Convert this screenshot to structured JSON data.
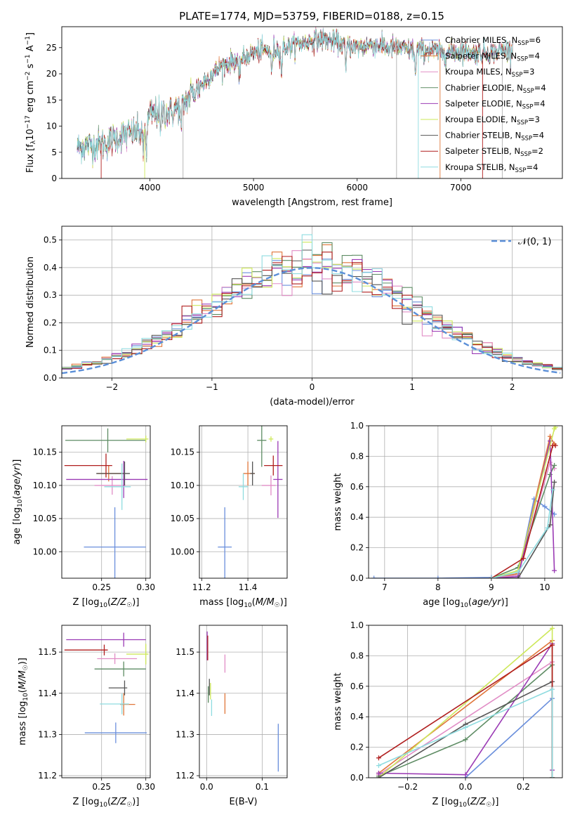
{
  "figure": {
    "title": "PLATE=1774, MJD=53759, FIBERID=0188, z=0.15"
  },
  "series": [
    {
      "name": "Chabrier MILES, N_SSP=6",
      "label": "Chabrier MILES, N",
      "ssp": "6",
      "color": "#6a8fdc"
    },
    {
      "name": "Salpeter MILES, N_SSP=4",
      "label": "Salpeter MILES, N",
      "ssp": "4",
      "color": "#e0763a"
    },
    {
      "name": "Kroupa MILES, N_SSP=3",
      "label": "Kroupa MILES, N",
      "ssp": "3",
      "color": "#e18dc6"
    },
    {
      "name": "Chabrier ELODIE, N_SSP=4",
      "label": "Chabrier ELODIE, N",
      "ssp": "4",
      "color": "#5e8c64"
    },
    {
      "name": "Salpeter ELODIE, N_SSP=4",
      "label": "Salpeter ELODIE, N",
      "ssp": "4",
      "color": "#9b3bb5"
    },
    {
      "name": "Kroupa ELODIE, N_SSP=3",
      "label": "Kroupa ELODIE, N",
      "ssp": "3",
      "color": "#cde85a"
    },
    {
      "name": "Chabrier STELIB, N_SSP=4",
      "label": "Chabrier STELIB, N",
      "ssp": "4",
      "color": "#555555"
    },
    {
      "name": "Salpeter STELIB, N_SSP=2",
      "label": "Salpeter STELIB, N",
      "ssp": "2",
      "color": "#b01e1e"
    },
    {
      "name": "Kroupa STELIB, N_SSP=4",
      "label": "Kroupa STELIB, N",
      "ssp": "4",
      "color": "#8fdce0"
    }
  ],
  "chart_data": [
    {
      "id": "spectrum",
      "type": "line",
      "xlabel": "wavelength [Angstrom, rest frame]",
      "ylabel": "Flux [f_λ 10^-17 erg cm^-2 s^-1 A^-1]",
      "xlim": [
        3150,
        7980
      ],
      "ylim": [
        0,
        29
      ],
      "xticks": [
        4000,
        5000,
        6000,
        7000
      ],
      "yticks": [
        0,
        5,
        10,
        15,
        20,
        25
      ],
      "grid": false,
      "legend_position": "top-right",
      "continuum": {
        "x": [
          3300,
          3400,
          3500,
          3600,
          3700,
          3800,
          3900,
          3950,
          4000,
          4100,
          4200,
          4300,
          4400,
          4500,
          4600,
          4700,
          4800,
          4900,
          5000,
          5100,
          5200,
          5300,
          5400,
          5500,
          5600,
          5700,
          5800,
          5900,
          6000,
          6100,
          6200,
          6300,
          6400,
          6500,
          6600,
          6700,
          6800,
          6900,
          7000,
          7100,
          7200,
          7300,
          7400,
          7500
        ],
        "y": [
          6.0,
          6.2,
          6.5,
          7.0,
          8.0,
          8.5,
          9.0,
          9.5,
          12.0,
          13.0,
          12.5,
          14.0,
          16.0,
          18.0,
          20.0,
          21.5,
          22.5,
          23.0,
          24.0,
          24.5,
          24.5,
          25.0,
          25.5,
          26.0,
          26.5,
          26.5,
          26.0,
          25.5,
          25.0,
          25.5,
          25.5,
          25.0,
          25.0,
          24.5,
          24.5,
          24.5,
          24.0,
          24.0,
          24.5,
          24.0,
          24.0,
          24.0,
          24.5,
          24.5
        ]
      },
      "absorption_lines": [
        3934,
        3968,
        4102,
        4300,
        4861,
        5175,
        5270,
        5890,
        6563
      ],
      "spike_lines": [
        3530,
        3950,
        4320,
        6380,
        6590,
        6800,
        7210,
        7400
      ]
    },
    {
      "id": "residual-histogram",
      "type": "histogram",
      "xlabel": "(data-model)/error",
      "ylabel": "Normed distribution",
      "xlim": [
        -2.5,
        2.5
      ],
      "ylim": [
        0,
        0.55
      ],
      "xticks": [
        -2,
        -1,
        0,
        1,
        2
      ],
      "yticks": [
        0.0,
        0.1,
        0.2,
        0.3,
        0.4,
        0.5
      ],
      "grid": true,
      "bin_width": 0.1,
      "reference_curve": {
        "label": "𝒩(0, 1)",
        "mean": 0,
        "sigma": 1,
        "style": "dashed"
      },
      "legend_position": "top-right"
    },
    {
      "id": "age-vs-z",
      "type": "errorbar",
      "xlabel": "Z [log₁₀(Z/Z☉)]",
      "ylabel": "age  [log₁₀(age/yr)]",
      "xlim": [
        0.205,
        0.305
      ],
      "ylim": [
        9.96,
        10.19
      ],
      "xticks": [
        0.25,
        0.3
      ],
      "xtick_labels": [
        "0.25",
        "0.30"
      ],
      "yticks": [
        10.0,
        10.05,
        10.1,
        10.15
      ],
      "grid": true,
      "points": [
        {
          "x": 0.265,
          "y": 10.007,
          "xerr": [
            0.035,
            0.035
          ],
          "yerr": [
            0.06,
            0.06
          ],
          "s": 0
        },
        {
          "x": 0.258,
          "y": 10.118,
          "xerr": [
            0.013,
            0.018
          ],
          "yerr": [
            0.012,
            0.012
          ],
          "s": 1
        },
        {
          "x": 0.262,
          "y": 10.1,
          "xerr": [
            0.02,
            0.015
          ],
          "yerr": [
            0.014,
            0.014
          ],
          "s": 2
        },
        {
          "x": 0.257,
          "y": 10.168,
          "xerr": [
            0.048,
            0.043
          ],
          "yerr": [
            0.018,
            0.018
          ],
          "s": 3
        },
        {
          "x": 0.275,
          "y": 10.109,
          "xerr": [
            0.065,
            0.027
          ],
          "yerr": [
            0.028,
            0.028
          ],
          "s": 4
        },
        {
          "x": 0.3,
          "y": 10.17,
          "xerr": [
            0.022,
            0.003
          ],
          "yerr": [
            0.005,
            0.005
          ],
          "s": 5
        },
        {
          "x": 0.276,
          "y": 10.118,
          "xerr": [
            0.032,
            0.006
          ],
          "yerr": [
            0.018,
            0.018
          ],
          "s": 6
        },
        {
          "x": 0.255,
          "y": 10.13,
          "xerr": [
            0.047,
            0.007
          ],
          "yerr": [
            0.018,
            0.018
          ],
          "s": 7
        },
        {
          "x": 0.273,
          "y": 10.098,
          "xerr": [
            0.02,
            0.01
          ],
          "yerr": [
            0.035,
            0.035
          ],
          "s": 8
        }
      ]
    },
    {
      "id": "age-vs-mass",
      "type": "errorbar",
      "xlabel": "mass [log₁₀(M/M☉)]",
      "ylabel": "",
      "xlim": [
        11.19,
        11.57
      ],
      "ylim": [
        9.96,
        10.19
      ],
      "xticks": [
        11.2,
        11.4
      ],
      "yticks": [
        10.0,
        10.05,
        10.1,
        10.15
      ],
      "grid": true,
      "points": [
        {
          "x": 11.3,
          "y": 10.007,
          "xerr": [
            0.03,
            0.03
          ],
          "yerr": [
            0.06,
            0.06
          ],
          "s": 0
        },
        {
          "x": 11.4,
          "y": 10.118,
          "xerr": [
            0.02,
            0.03
          ],
          "yerr": [
            0.018,
            0.018
          ],
          "s": 1
        },
        {
          "x": 11.5,
          "y": 10.1,
          "xerr": [
            0.04,
            0.02
          ],
          "yerr": [
            0.015,
            0.015
          ],
          "s": 2
        },
        {
          "x": 11.46,
          "y": 10.168,
          "xerr": [
            0.02,
            0.02
          ],
          "yerr": [
            0.04,
            0.04
          ],
          "s": 3
        },
        {
          "x": 11.53,
          "y": 10.109,
          "xerr": [
            0.02,
            0.02
          ],
          "yerr": [
            0.058,
            0.058
          ],
          "s": 4
        },
        {
          "x": 11.5,
          "y": 10.17,
          "xerr": [
            0.01,
            0.01
          ],
          "yerr": [
            0.004,
            0.004
          ],
          "s": 5
        },
        {
          "x": 11.42,
          "y": 10.118,
          "xerr": [
            0.01,
            0.01
          ],
          "yerr": [
            0.018,
            0.018
          ],
          "s": 6
        },
        {
          "x": 11.51,
          "y": 10.13,
          "xerr": [
            0.04,
            0.04
          ],
          "yerr": [
            0.015,
            0.015
          ],
          "s": 7
        },
        {
          "x": 11.38,
          "y": 10.098,
          "xerr": [
            0.02,
            0.02
          ],
          "yerr": [
            0.02,
            0.02
          ],
          "s": 8
        }
      ]
    },
    {
      "id": "mass-weight-vs-age",
      "type": "line",
      "xlabel": "age  [log₁₀(age/yr)]",
      "ylabel": "mass weight",
      "xlim": [
        6.7,
        10.33
      ],
      "ylim": [
        0,
        1
      ],
      "xticks": [
        7,
        8,
        9,
        10
      ],
      "yticks": [
        0.0,
        0.2,
        0.4,
        0.6,
        0.8,
        1.0
      ],
      "grid": true,
      "series": [
        {
          "s": 0,
          "x": [
            6.8,
            8.0,
            9.0,
            9.5,
            9.8,
            10.0,
            10.18
          ],
          "y": [
            0.0,
            0.0,
            0.005,
            0.02,
            0.52,
            0.47,
            0.42
          ]
        },
        {
          "s": 1,
          "x": [
            9.0,
            9.5,
            10.1,
            10.18
          ],
          "y": [
            0.0,
            0.03,
            0.93,
            0.88
          ]
        },
        {
          "s": 2,
          "x": [
            9.0,
            9.5,
            10.1,
            10.18
          ],
          "y": [
            0.0,
            0.02,
            0.76,
            0.72
          ]
        },
        {
          "s": 3,
          "x": [
            9.0,
            9.5,
            10.1,
            10.18
          ],
          "y": [
            0.0,
            0.07,
            0.68,
            0.74
          ]
        },
        {
          "s": 4,
          "x": [
            9.0,
            9.5,
            10.1,
            10.18
          ],
          "y": [
            0.0,
            0.01,
            0.9,
            0.05
          ]
        },
        {
          "s": 5,
          "x": [
            9.0,
            9.5,
            10.18,
            10.2
          ],
          "y": [
            0.0,
            0.05,
            0.98,
            0.99
          ]
        },
        {
          "s": 6,
          "x": [
            9.0,
            9.5,
            10.1,
            10.18
          ],
          "y": [
            0.0,
            0.0,
            0.35,
            0.63
          ]
        },
        {
          "s": 7,
          "x": [
            9.0,
            9.6,
            10.15,
            10.2
          ],
          "y": [
            0.0,
            0.13,
            0.87,
            0.87
          ]
        },
        {
          "s": 8,
          "x": [
            9.0,
            9.5,
            10.05,
            10.15
          ],
          "y": [
            0.0,
            0.04,
            0.33,
            0.58
          ]
        }
      ]
    },
    {
      "id": "mass-vs-z",
      "type": "errorbar",
      "xlabel": "Z [log₁₀(Z/Z☉)]",
      "ylabel": "mass [log₁₀(M/M☉)]",
      "xlim": [
        0.205,
        0.305
      ],
      "ylim": [
        11.195,
        11.565
      ],
      "xticks": [
        0.25,
        0.3
      ],
      "xtick_labels": [
        "0.25",
        "0.30"
      ],
      "yticks": [
        11.2,
        11.3,
        11.4,
        11.5
      ],
      "grid": true,
      "points": [
        {
          "x": 0.266,
          "y": 11.304,
          "xerr": [
            0.035,
            0.035
          ],
          "yerr": [
            0.025,
            0.025
          ],
          "s": 0
        },
        {
          "x": 0.275,
          "y": 11.373,
          "xerr": [
            0.004,
            0.013
          ],
          "yerr": [
            0.027,
            0.027
          ],
          "s": 1
        },
        {
          "x": 0.265,
          "y": 11.484,
          "xerr": [
            0.02,
            0.025
          ],
          "yerr": [
            0.013,
            0.013
          ],
          "s": 2
        },
        {
          "x": 0.275,
          "y": 11.459,
          "xerr": [
            0.033,
            0.025
          ],
          "yerr": [
            0.018,
            0.018
          ],
          "s": 3
        },
        {
          "x": 0.275,
          "y": 11.53,
          "xerr": [
            0.065,
            0.025
          ],
          "yerr": [
            0.017,
            0.017
          ],
          "s": 4
        },
        {
          "x": 0.3,
          "y": 11.495,
          "xerr": [
            0.022,
            0.003
          ],
          "yerr": [
            0.025,
            0.025
          ],
          "s": 5
        },
        {
          "x": 0.276,
          "y": 11.413,
          "xerr": [
            0.018,
            0.003
          ],
          "yerr": [
            0.018,
            0.018
          ],
          "s": 6
        },
        {
          "x": 0.253,
          "y": 11.505,
          "xerr": [
            0.045,
            0.004
          ],
          "yerr": [
            0.013,
            0.013
          ],
          "s": 7
        },
        {
          "x": 0.273,
          "y": 11.374,
          "xerr": [
            0.025,
            0.008
          ],
          "yerr": [
            0.025,
            0.025
          ],
          "s": 8
        }
      ]
    },
    {
      "id": "mass-vs-ebv",
      "type": "errorbar",
      "xlabel": "E(B-V)",
      "ylabel": "",
      "xlim": [
        -0.013,
        0.145
      ],
      "ylim": [
        11.195,
        11.565
      ],
      "xticks": [
        0.0,
        0.1
      ],
      "yticks": [
        11.2,
        11.3,
        11.4,
        11.5
      ],
      "grid": true,
      "points": [
        {
          "x": 0.129,
          "y": 11.268,
          "xerr": [
            0,
            0
          ],
          "yerr": [
            0.058,
            0.058
          ],
          "s": 0
        },
        {
          "x": 0.033,
          "y": 11.375,
          "xerr": [
            0,
            0
          ],
          "yerr": [
            0.025,
            0.025
          ],
          "s": 1
        },
        {
          "x": 0.033,
          "y": 11.472,
          "xerr": [
            0,
            0
          ],
          "yerr": [
            0.022,
            0.022
          ],
          "s": 2
        },
        {
          "x": 0.003,
          "y": 11.397,
          "xerr": [
            0,
            0
          ],
          "yerr": [
            0.02,
            0.02
          ],
          "s": 3
        },
        {
          "x": 0.001,
          "y": 11.515,
          "xerr": [
            0,
            0
          ],
          "yerr": [
            0.035,
            0.035
          ],
          "s": 4
        },
        {
          "x": 0.007,
          "y": 11.405,
          "xerr": [
            0,
            0
          ],
          "yerr": [
            0.02,
            0.02
          ],
          "s": 5
        },
        {
          "x": 0.005,
          "y": 11.415,
          "xerr": [
            0,
            0
          ],
          "yerr": [
            0.02,
            0.02
          ],
          "s": 6
        },
        {
          "x": 0.002,
          "y": 11.51,
          "xerr": [
            0,
            0
          ],
          "yerr": [
            0.03,
            0.03
          ],
          "s": 7
        },
        {
          "x": 0.009,
          "y": 11.365,
          "xerr": [
            0,
            0
          ],
          "yerr": [
            0.02,
            0.02
          ],
          "s": 8
        }
      ]
    },
    {
      "id": "mass-weight-vs-z",
      "type": "line",
      "xlabel": "Z [log₁₀(Z/Z☉)]",
      "ylabel": "mass weight",
      "xlim": [
        -0.335,
        0.335
      ],
      "ylim": [
        0,
        1
      ],
      "xticks": [
        -0.2,
        0.0,
        0.2
      ],
      "yticks": [
        0.0,
        0.2,
        0.4,
        0.6,
        0.8,
        1.0
      ],
      "grid": true,
      "series": [
        {
          "s": 0,
          "x": [
            -0.3,
            0.0,
            0.3,
            0.3
          ],
          "y": [
            0.0,
            0.0,
            0.52,
            0.0
          ]
        },
        {
          "s": 1,
          "x": [
            -0.3,
            0.3,
            0.3
          ],
          "y": [
            0.03,
            0.9,
            0.0
          ]
        },
        {
          "s": 2,
          "x": [
            -0.3,
            0.3,
            0.3
          ],
          "y": [
            0.02,
            0.76,
            0.0
          ]
        },
        {
          "s": 3,
          "x": [
            -0.3,
            0.0,
            0.3,
            0.3
          ],
          "y": [
            0.01,
            0.25,
            0.74,
            0.0
          ]
        },
        {
          "s": 4,
          "x": [
            -0.3,
            0.0,
            0.3,
            0.3
          ],
          "y": [
            0.03,
            0.02,
            0.88,
            0.05
          ]
        },
        {
          "s": 5,
          "x": [
            -0.3,
            0.3,
            0.3
          ],
          "y": [
            0.0,
            0.98,
            0.0
          ]
        },
        {
          "s": 6,
          "x": [
            -0.3,
            0.0,
            0.3,
            0.3
          ],
          "y": [
            0.0,
            0.35,
            0.63,
            0.0
          ]
        },
        {
          "s": 7,
          "x": [
            -0.3,
            0.3,
            0.3
          ],
          "y": [
            0.13,
            0.87,
            0.0
          ]
        },
        {
          "s": 8,
          "x": [
            -0.3,
            0.0,
            0.3,
            0.3
          ],
          "y": [
            0.08,
            0.33,
            0.58,
            0.0
          ]
        }
      ]
    }
  ]
}
